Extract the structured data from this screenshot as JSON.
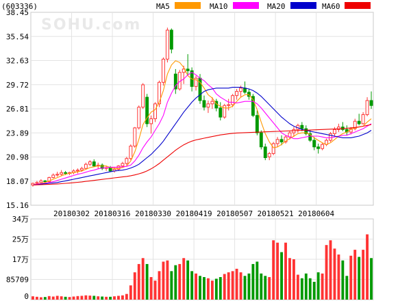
{
  "header": {
    "code_label": "(603336)",
    "watermark": "SOHU.com"
  },
  "legend": [
    {
      "label": "MA5",
      "color": "#ff9900"
    },
    {
      "label": "MA10",
      "color": "#ff00ff"
    },
    {
      "label": "MA20",
      "color": "#0000cc"
    },
    {
      "label": "MA60",
      "color": "#ee0000"
    }
  ],
  "chart_data": [
    {
      "type": "candlestick",
      "price_ticks": [
        "38.45",
        "35.54",
        "32.63",
        "29.72",
        "26.81",
        "23.89",
        "20.98",
        "18.07",
        "15.16"
      ],
      "ylim": [
        15.16,
        38.45
      ],
      "x_tick_labels": [
        "20180302",
        "20180316",
        "20180330",
        "20180419",
        "20180507",
        "20180521",
        "20180604"
      ],
      "x_tick_index": [
        10,
        20,
        30,
        40,
        50,
        60,
        70
      ],
      "up_color": "#ff3333",
      "down_color": "#009900",
      "candles": [
        [
          17.6,
          17.9,
          17.4,
          17.8
        ],
        [
          17.8,
          18.1,
          17.6,
          17.9
        ],
        [
          17.9,
          18.3,
          17.8,
          18.1
        ],
        [
          18.1,
          18.2,
          17.9,
          18.0
        ],
        [
          18.0,
          18.6,
          17.9,
          18.5
        ],
        [
          18.5,
          19.0,
          18.4,
          18.8
        ],
        [
          18.8,
          19.2,
          18.6,
          18.9
        ],
        [
          18.9,
          19.4,
          18.7,
          19.1
        ],
        [
          19.1,
          19.3,
          18.8,
          19.0
        ],
        [
          19.0,
          19.2,
          18.8,
          19.1
        ],
        [
          19.1,
          19.5,
          18.9,
          19.3
        ],
        [
          19.3,
          19.6,
          19.0,
          19.4
        ],
        [
          19.4,
          19.8,
          19.2,
          19.6
        ],
        [
          19.6,
          20.3,
          19.5,
          20.1
        ],
        [
          20.1,
          20.6,
          19.9,
          20.4
        ],
        [
          20.4,
          20.7,
          19.8,
          19.9
        ],
        [
          19.9,
          20.3,
          19.5,
          20.0
        ],
        [
          20.0,
          20.2,
          19.4,
          19.6
        ],
        [
          19.6,
          19.9,
          19.3,
          19.7
        ],
        [
          19.7,
          19.9,
          19.2,
          19.3
        ],
        [
          19.3,
          19.8,
          19.1,
          19.5
        ],
        [
          19.5,
          20.0,
          19.3,
          19.9
        ],
        [
          19.9,
          20.4,
          19.7,
          20.2
        ],
        [
          20.2,
          21.0,
          20.0,
          20.8
        ],
        [
          20.8,
          22.5,
          20.6,
          22.3
        ],
        [
          22.3,
          24.6,
          22.1,
          24.5
        ],
        [
          24.5,
          27.2,
          24.3,
          27.0
        ],
        [
          27.0,
          29.9,
          26.8,
          29.7
        ],
        [
          28.2,
          28.6,
          24.6,
          25.0
        ],
        [
          25.0,
          26.0,
          23.8,
          25.6
        ],
        [
          25.6,
          27.6,
          25.2,
          27.4
        ],
        [
          27.4,
          30.2,
          27.0,
          30.0
        ],
        [
          30.0,
          33.0,
          29.6,
          32.8
        ],
        [
          32.8,
          36.6,
          32.4,
          36.3
        ],
        [
          36.3,
          36.5,
          33.5,
          34.0
        ],
        [
          31.0,
          31.6,
          28.6,
          29.2
        ],
        [
          29.2,
          31.5,
          29.0,
          31.2
        ],
        [
          31.2,
          32.0,
          29.8,
          31.6
        ],
        [
          31.6,
          33.4,
          30.8,
          31.4
        ],
        [
          31.4,
          31.8,
          28.9,
          29.5
        ],
        [
          29.5,
          30.8,
          29.0,
          30.5
        ],
        [
          30.5,
          31.0,
          27.4,
          27.8
        ],
        [
          27.8,
          28.4,
          26.6,
          27.0
        ],
        [
          27.0,
          27.8,
          26.3,
          27.4
        ],
        [
          27.4,
          28.2,
          26.8,
          27.7
        ],
        [
          27.7,
          28.0,
          26.5,
          26.9
        ],
        [
          26.9,
          27.6,
          25.4,
          25.8
        ],
        [
          25.8,
          27.4,
          25.6,
          27.2
        ],
        [
          27.2,
          28.0,
          26.6,
          27.3
        ],
        [
          27.3,
          28.6,
          27.0,
          28.4
        ],
        [
          28.4,
          29.2,
          27.9,
          28.9
        ],
        [
          28.9,
          29.6,
          28.2,
          29.3
        ],
        [
          29.3,
          30.1,
          28.6,
          28.8
        ],
        [
          28.8,
          29.2,
          27.9,
          28.3
        ],
        [
          28.3,
          28.6,
          25.8,
          26.0
        ],
        [
          26.0,
          26.6,
          23.6,
          23.9
        ],
        [
          23.9,
          24.2,
          21.9,
          22.2
        ],
        [
          22.2,
          22.6,
          20.6,
          20.9
        ],
        [
          21.0,
          21.6,
          20.6,
          21.4
        ],
        [
          21.4,
          22.8,
          21.2,
          22.6
        ],
        [
          22.6,
          23.4,
          22.2,
          23.1
        ],
        [
          23.1,
          23.6,
          22.4,
          22.8
        ],
        [
          22.8,
          23.6,
          22.6,
          23.4
        ],
        [
          23.4,
          24.1,
          23.1,
          23.9
        ],
        [
          23.9,
          24.6,
          23.4,
          24.3
        ],
        [
          24.3,
          25.0,
          23.9,
          24.8
        ],
        [
          24.8,
          25.2,
          24.1,
          24.4
        ],
        [
          24.4,
          24.8,
          23.6,
          23.8
        ],
        [
          23.8,
          24.2,
          22.8,
          23.0
        ],
        [
          23.0,
          23.4,
          21.8,
          22.2
        ],
        [
          22.2,
          22.6,
          21.4,
          22.0
        ],
        [
          22.0,
          22.7,
          21.8,
          22.5
        ],
        [
          22.5,
          23.2,
          22.3,
          23.0
        ],
        [
          23.0,
          24.0,
          22.8,
          23.8
        ],
        [
          23.8,
          24.6,
          23.5,
          24.3
        ],
        [
          24.3,
          25.0,
          24.0,
          24.6
        ],
        [
          24.6,
          25.2,
          24.1,
          24.3
        ],
        [
          24.3,
          24.8,
          23.6,
          24.0
        ],
        [
          24.0,
          24.6,
          23.7,
          24.4
        ],
        [
          24.4,
          25.6,
          24.2,
          25.3
        ],
        [
          25.3,
          26.2,
          24.8,
          25.0
        ],
        [
          25.0,
          26.4,
          24.9,
          26.1
        ],
        [
          26.1,
          28.2,
          25.9,
          27.8
        ],
        [
          27.8,
          28.9,
          26.8,
          27.2
        ]
      ],
      "ma5": [
        17.6,
        17.7,
        17.8,
        17.9,
        18.1,
        18.3,
        18.5,
        18.7,
        18.9,
        19.0,
        19.1,
        19.2,
        19.3,
        19.5,
        19.7,
        19.8,
        19.9,
        19.9,
        19.9,
        19.7,
        19.6,
        19.6,
        19.7,
        19.9,
        20.5,
        21.6,
        23.1,
        24.9,
        25.7,
        26.4,
        26.7,
        27.6,
        29.0,
        31.0,
        32.1,
        32.6,
        32.4,
        31.8,
        30.8,
        30.4,
        30.3,
        30.0,
        29.3,
        28.5,
        28.1,
        27.4,
        27.1,
        26.9,
        26.9,
        27.1,
        27.7,
        28.2,
        28.5,
        28.5,
        27.9,
        26.7,
        25.2,
        23.8,
        22.8,
        22.1,
        22.2,
        22.5,
        22.9,
        23.2,
        23.5,
        23.8,
        23.9,
        23.9,
        23.7,
        23.3,
        23.0,
        22.7,
        22.5,
        22.7,
        23.1,
        23.5,
        23.8,
        24.0,
        24.3,
        24.5,
        24.6,
        24.7,
        25.2,
        25.6
      ],
      "ma10": [
        17.6,
        17.7,
        17.75,
        17.8,
        17.9,
        18.0,
        18.15,
        18.3,
        18.45,
        18.6,
        18.75,
        18.9,
        19.0,
        19.15,
        19.3,
        19.4,
        19.55,
        19.65,
        19.7,
        19.75,
        19.75,
        19.75,
        19.8,
        19.85,
        20.0,
        20.5,
        21.2,
        22.1,
        22.8,
        23.4,
        24.2,
        25.0,
        26.0,
        27.6,
        28.7,
        29.6,
        30.1,
        30.4,
        30.9,
        31.2,
        30.9,
        30.5,
        30.2,
        29.7,
        29.3,
        28.6,
        28.2,
        27.9,
        27.6,
        27.6,
        27.5,
        27.6,
        27.7,
        27.7,
        27.7,
        27.4,
        26.9,
        26.3,
        25.7,
        25.1,
        24.5,
        23.9,
        23.6,
        23.4,
        23.2,
        23.2,
        23.3,
        23.4,
        23.5,
        23.5,
        23.5,
        23.4,
        23.3,
        23.3,
        23.4,
        23.5,
        23.6,
        23.6,
        23.8,
        24.0,
        24.2,
        24.4,
        24.7,
        25.0
      ],
      "ma20": [
        17.6,
        17.65,
        17.7,
        17.75,
        17.8,
        17.85,
        17.9,
        18.0,
        18.1,
        18.2,
        18.3,
        18.4,
        18.5,
        18.6,
        18.7,
        18.8,
        18.9,
        19.0,
        19.1,
        19.2,
        19.3,
        19.35,
        19.4,
        19.5,
        19.65,
        19.85,
        20.1,
        20.5,
        20.9,
        21.3,
        21.8,
        22.3,
        22.9,
        23.6,
        24.3,
        25.0,
        25.7,
        26.4,
        27.0,
        27.6,
        28.1,
        28.5,
        28.9,
        29.1,
        29.2,
        29.3,
        29.3,
        29.3,
        29.3,
        29.4,
        29.4,
        29.4,
        29.3,
        29.2,
        29.0,
        28.7,
        28.3,
        27.8,
        27.3,
        26.8,
        26.3,
        25.8,
        25.4,
        25.0,
        24.7,
        24.5,
        24.3,
        24.2,
        24.1,
        24.0,
        23.9,
        23.8,
        23.7,
        23.6,
        23.5,
        23.4,
        23.3,
        23.3,
        23.3,
        23.4,
        23.5,
        23.7,
        23.9,
        24.2
      ],
      "ma60": [
        17.6,
        17.62,
        17.64,
        17.66,
        17.68,
        17.7,
        17.73,
        17.76,
        17.8,
        17.84,
        17.88,
        17.93,
        17.98,
        18.04,
        18.1,
        18.16,
        18.22,
        18.28,
        18.34,
        18.4,
        18.46,
        18.52,
        18.58,
        18.64,
        18.72,
        18.82,
        18.95,
        19.1,
        19.3,
        19.55,
        19.85,
        20.2,
        20.6,
        21.0,
        21.4,
        21.8,
        22.15,
        22.45,
        22.7,
        22.9,
        23.05,
        23.15,
        23.25,
        23.35,
        23.45,
        23.55,
        23.65,
        23.72,
        23.78,
        23.84,
        23.88,
        23.9,
        23.92,
        23.94,
        23.96,
        23.98,
        24.0,
        24.02,
        24.04,
        24.06,
        24.08,
        24.1,
        24.12,
        24.14,
        24.16,
        24.18,
        24.2,
        24.22,
        24.24,
        24.26,
        24.28,
        24.3,
        24.32,
        24.34,
        24.36,
        24.38,
        24.4,
        24.45,
        24.5,
        24.55,
        24.62,
        24.7,
        24.8,
        24.9
      ]
    },
    {
      "type": "bar",
      "title": "volume",
      "volume_ticks": [
        "34万",
        "25万",
        "17万",
        "85709",
        "0"
      ],
      "ylim": [
        0,
        340000
      ],
      "volumes": [
        14000,
        12000,
        10000,
        11000,
        15000,
        13000,
        16000,
        14000,
        12000,
        11000,
        13000,
        15000,
        16000,
        18000,
        17000,
        16000,
        14000,
        13000,
        12000,
        12000,
        14000,
        16000,
        18000,
        24000,
        60000,
        115000,
        150000,
        175000,
        150000,
        95000,
        80000,
        120000,
        160000,
        165000,
        120000,
        145000,
        150000,
        175000,
        165000,
        120000,
        110000,
        100000,
        95000,
        90000,
        80000,
        88000,
        95000,
        108000,
        115000,
        120000,
        130000,
        115000,
        100000,
        110000,
        150000,
        160000,
        110000,
        100000,
        95000,
        250000,
        240000,
        200000,
        240000,
        175000,
        170000,
        105000,
        90000,
        110000,
        90000,
        75000,
        115000,
        110000,
        230000,
        250000,
        215000,
        190000,
        165000,
        100000,
        185000,
        210000,
        180000,
        210000,
        275000,
        175000
      ]
    }
  ]
}
